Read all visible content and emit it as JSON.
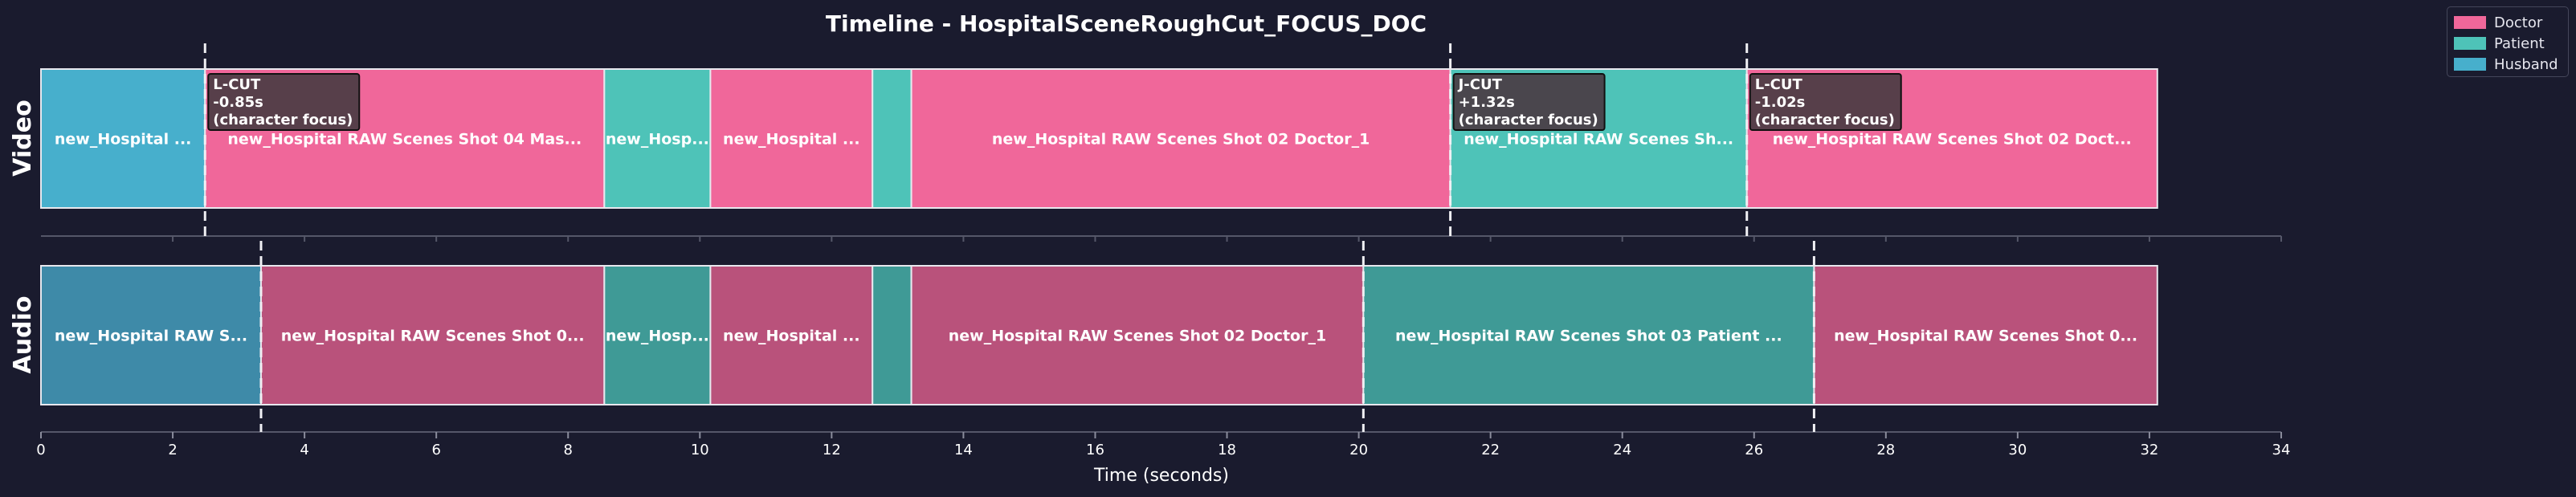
{
  "chart_data": {
    "type": "timeline",
    "title": "Timeline - HospitalSceneRoughCut_FOCUS_DOC",
    "xlabel": "Time (seconds)",
    "xlim": [
      0,
      34
    ],
    "xticks": [
      "0",
      "2",
      "4",
      "6",
      "8",
      "10",
      "12",
      "14",
      "16",
      "18",
      "20",
      "22",
      "24",
      "26",
      "28",
      "30",
      "32",
      "34"
    ],
    "tracks": [
      "Video",
      "Audio"
    ],
    "legend": [
      {
        "name": "Doctor",
        "color": "#f0679a"
      },
      {
        "name": "Patient",
        "color": "#4ec3b8"
      },
      {
        "name": "Husband",
        "color": "#47afcc"
      }
    ],
    "video_clips": [
      {
        "start": 0,
        "end": 2.49,
        "label": "new_Hospital ...",
        "speaker": "Husband"
      },
      {
        "start": 2.49,
        "end": 8.55,
        "label": "new_Hospital RAW Scenes Shot 04 Mas...",
        "speaker": "Doctor"
      },
      {
        "start": 8.55,
        "end": 10.16,
        "label": "new_Hosp...",
        "speaker": "Patient"
      },
      {
        "start": 10.16,
        "end": 12.62,
        "label": "new_Hospital ...",
        "speaker": "Doctor"
      },
      {
        "start": 12.62,
        "end": 13.21,
        "label": "",
        "speaker": "Patient"
      },
      {
        "start": 13.21,
        "end": 21.39,
        "label": "new_Hospital RAW Scenes Shot 02 Doctor_1",
        "speaker": "Doctor"
      },
      {
        "start": 21.39,
        "end": 25.89,
        "label": "new_Hospital RAW Scenes Sh...",
        "speaker": "Patient"
      },
      {
        "start": 25.89,
        "end": 32.12,
        "label": "new_Hospital RAW Scenes Shot 02 Doct...",
        "speaker": "Doctor"
      }
    ],
    "audio_clips": [
      {
        "start": 0,
        "end": 3.34,
        "label": "new_Hospital RAW S...",
        "speaker": "Husband"
      },
      {
        "start": 3.34,
        "end": 8.55,
        "label": "new_Hospital RAW Scenes Shot 0...",
        "speaker": "Doctor"
      },
      {
        "start": 8.55,
        "end": 10.16,
        "label": "new_Hosp...",
        "speaker": "Patient"
      },
      {
        "start": 10.16,
        "end": 12.62,
        "label": "new_Hospital ...",
        "speaker": "Doctor"
      },
      {
        "start": 12.62,
        "end": 13.21,
        "label": "",
        "speaker": "Patient"
      },
      {
        "start": 13.21,
        "end": 20.07,
        "label": "new_Hospital RAW Scenes Shot 02 Doctor_1",
        "speaker": "Doctor"
      },
      {
        "start": 20.07,
        "end": 26.91,
        "label": "new_Hospital RAW Scenes Shot 03 Patient ...",
        "speaker": "Patient"
      },
      {
        "start": 26.91,
        "end": 32.12,
        "label": "new_Hospital RAW Scenes Shot 0...",
        "speaker": "Doctor"
      }
    ],
    "edits": [
      {
        "video_time": 2.49,
        "audio_time": 3.34,
        "lines": [
          "L-CUT",
          "-0.85s",
          "(character focus)"
        ]
      },
      {
        "video_time": 21.39,
        "audio_time": 20.07,
        "lines": [
          "J-CUT",
          "+1.32s",
          "(character focus)"
        ]
      },
      {
        "video_time": 25.89,
        "audio_time": 26.91,
        "lines": [
          "L-CUT",
          "-1.02s",
          "(character focus)"
        ]
      }
    ],
    "grid": false,
    "legend_position": "top-right"
  }
}
